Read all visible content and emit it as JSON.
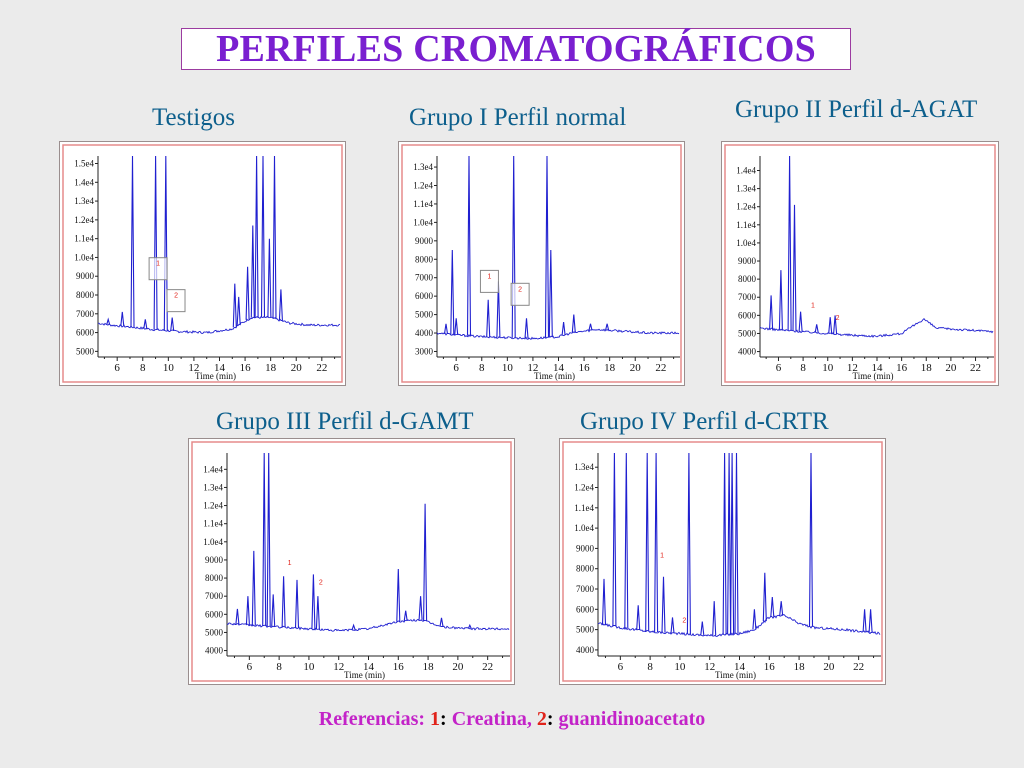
{
  "title": "PERFILES CROMATOGRÁFICOS",
  "footer": {
    "prefix": "Referencias: ",
    "n1": "1",
    "sep1": ": ",
    "name1": "Creatina, ",
    "n2": "2",
    "sep2": ": ",
    "name2": "guanidinoacetato"
  },
  "colors": {
    "trace": "#2020d0",
    "title": "#7a1fd0",
    "panel_title": "#0d5f8c",
    "marker": "#e0231a"
  },
  "chart_data": [
    {
      "type": "line",
      "title": "Testigos",
      "xlabel": "Time (min)",
      "xlim": [
        4.5,
        23.5
      ],
      "ylim": [
        4700,
        15400
      ],
      "xticks": [
        6,
        8,
        10,
        12,
        14,
        16,
        18,
        20,
        22
      ],
      "yticks": [
        5000,
        6000,
        7000,
        8000,
        9000,
        10000,
        11000,
        12000,
        13000,
        14000,
        15000
      ],
      "ytick_labels": [
        "5000",
        "6000",
        "7000",
        "8000",
        "9000",
        "1.0e4",
        "1.1e4",
        "1.2e4",
        "1.3e4",
        "1.4e4",
        "1.5e4"
      ],
      "baseline": [
        [
          4.5,
          6500
        ],
        [
          5.5,
          6400
        ],
        [
          7,
          6300
        ],
        [
          9,
          6150
        ],
        [
          11,
          6050
        ],
        [
          13,
          6000
        ],
        [
          15,
          6200
        ],
        [
          16.5,
          6800
        ],
        [
          18,
          6800
        ],
        [
          19.5,
          6500
        ],
        [
          21,
          6400
        ],
        [
          23.5,
          6400
        ]
      ],
      "peaks": [
        [
          5.3,
          6700
        ],
        [
          6.4,
          7100
        ],
        [
          7.2,
          15400
        ],
        [
          8.2,
          6700
        ],
        [
          9.0,
          15400
        ],
        [
          9.8,
          15400
        ],
        [
          10.3,
          6800
        ],
        [
          15.2,
          8600
        ],
        [
          15.5,
          7900
        ],
        [
          16.2,
          9500
        ],
        [
          16.6,
          11700
        ],
        [
          16.9,
          15400
        ],
        [
          17.4,
          15400
        ],
        [
          17.9,
          11000
        ],
        [
          18.3,
          15400
        ],
        [
          18.8,
          8300
        ]
      ],
      "markers": [
        {
          "label": "1",
          "x": 9.2,
          "y": 9400
        },
        {
          "label": "2",
          "x": 10.6,
          "y": 7700
        }
      ],
      "marker_style": "box"
    },
    {
      "type": "line",
      "title": "Grupo I Perfil normal",
      "xlabel": "Time (min)",
      "xlim": [
        4.5,
        23.5
      ],
      "ylim": [
        2700,
        13600
      ],
      "xticks": [
        6,
        8,
        10,
        12,
        14,
        16,
        18,
        20,
        22
      ],
      "yticks": [
        3000,
        4000,
        5000,
        6000,
        7000,
        8000,
        9000,
        10000,
        11000,
        12000,
        13000
      ],
      "ytick_labels": [
        "3000",
        "4000",
        "5000",
        "6000",
        "7000",
        "8000",
        "9000",
        "1.0e4",
        "1.1e4",
        "1.2e4",
        "1.3e4"
      ],
      "baseline": [
        [
          4.5,
          4000
        ],
        [
          6,
          3900
        ],
        [
          8,
          3800
        ],
        [
          10,
          3750
        ],
        [
          12,
          3700
        ],
        [
          14,
          3800
        ],
        [
          15,
          4000
        ],
        [
          17,
          4200
        ],
        [
          19,
          4100
        ],
        [
          21,
          4000
        ],
        [
          23.5,
          4000
        ]
      ],
      "peaks": [
        [
          5.2,
          4500
        ],
        [
          5.7,
          8500
        ],
        [
          6.0,
          4800
        ],
        [
          7.0,
          13600
        ],
        [
          8.5,
          5800
        ],
        [
          9.3,
          6800
        ],
        [
          10.5,
          13600
        ],
        [
          11.5,
          4800
        ],
        [
          13.1,
          13600
        ],
        [
          13.4,
          8500
        ],
        [
          14.4,
          4600
        ],
        [
          15.2,
          5000
        ],
        [
          16.5,
          4500
        ],
        [
          17.8,
          4500
        ]
      ],
      "markers": [
        {
          "label": "1",
          "x": 8.6,
          "y": 6800
        },
        {
          "label": "2",
          "x": 11.0,
          "y": 6100
        }
      ],
      "marker_style": "box"
    },
    {
      "type": "line",
      "title": "Grupo II Perfil d-AGAT",
      "xlabel": "Time (min)",
      "xlim": [
        4.5,
        23.5
      ],
      "ylim": [
        3700,
        14800
      ],
      "xticks": [
        6,
        8,
        10,
        12,
        14,
        16,
        18,
        20,
        22
      ],
      "yticks": [
        4000,
        5000,
        6000,
        7000,
        8000,
        9000,
        10000,
        11000,
        12000,
        13000,
        14000
      ],
      "ytick_labels": [
        "4000",
        "5000",
        "6000",
        "7000",
        "8000",
        "9000",
        "1.0e4",
        "1.1e4",
        "1.2e4",
        "1.3e4",
        "1.4e4"
      ],
      "baseline": [
        [
          4.5,
          5300
        ],
        [
          6,
          5200
        ],
        [
          8,
          5100
        ],
        [
          10,
          5000
        ],
        [
          12,
          4900
        ],
        [
          14,
          4850
        ],
        [
          16,
          5000
        ],
        [
          17.8,
          5800
        ],
        [
          18.8,
          5300
        ],
        [
          21,
          5200
        ],
        [
          23.5,
          5100
        ]
      ],
      "peaks": [
        [
          5.4,
          7100
        ],
        [
          6.2,
          8500
        ],
        [
          6.9,
          14800
        ],
        [
          7.3,
          12100
        ],
        [
          7.8,
          6200
        ],
        [
          9.1,
          5500
        ],
        [
          10.2,
          5900
        ],
        [
          10.6,
          6000
        ]
      ],
      "markers": [
        {
          "label": "1",
          "x": 8.8,
          "y": 6600
        },
        {
          "label": "2",
          "x": 10.8,
          "y": 5900
        }
      ],
      "marker_style": "text"
    },
    {
      "type": "line",
      "title": "Grupo III Perfil d-GAMT",
      "xlabel": "Time (min)",
      "xlim": [
        4.5,
        23.5
      ],
      "ylim": [
        3700,
        14900
      ],
      "xticks": [
        6,
        8,
        10,
        12,
        14,
        16,
        18,
        20,
        22
      ],
      "yticks": [
        4000,
        5000,
        6000,
        7000,
        8000,
        9000,
        10000,
        11000,
        12000,
        13000,
        14000
      ],
      "ytick_labels": [
        "4000",
        "5000",
        "6000",
        "7000",
        "8000",
        "9000",
        "1.0e4",
        "1.1e4",
        "1.2e4",
        "1.3e4",
        "1.4e4"
      ],
      "baseline": [
        [
          4.5,
          5500
        ],
        [
          6,
          5400
        ],
        [
          8,
          5300
        ],
        [
          10,
          5200
        ],
        [
          12,
          5100
        ],
        [
          14,
          5200
        ],
        [
          16,
          5600
        ],
        [
          17.5,
          5700
        ],
        [
          19,
          5300
        ],
        [
          21,
          5200
        ],
        [
          23.5,
          5200
        ]
      ],
      "peaks": [
        [
          5.2,
          6300
        ],
        [
          5.9,
          7000
        ],
        [
          6.3,
          9500
        ],
        [
          7.0,
          14900
        ],
        [
          7.3,
          14900
        ],
        [
          7.6,
          7100
        ],
        [
          8.3,
          8100
        ],
        [
          9.2,
          7900
        ],
        [
          10.3,
          8200
        ],
        [
          10.6,
          7000
        ],
        [
          13.0,
          5400
        ],
        [
          16.0,
          8500
        ],
        [
          16.5,
          6200
        ],
        [
          17.5,
          7000
        ],
        [
          17.8,
          12100
        ],
        [
          18.9,
          5800
        ],
        [
          20.8,
          5400
        ]
      ],
      "markers": [
        {
          "label": "1",
          "x": 8.7,
          "y": 8900
        },
        {
          "label": "2",
          "x": 10.8,
          "y": 7800
        }
      ],
      "marker_style": "text"
    },
    {
      "type": "line",
      "title": "Grupo IV Perfil d-CRTR",
      "xlabel": "Time (min)",
      "xlim": [
        4.5,
        23.5
      ],
      "ylim": [
        3700,
        13700
      ],
      "xticks": [
        6,
        8,
        10,
        12,
        14,
        16,
        18,
        20,
        22
      ],
      "yticks": [
        4000,
        5000,
        6000,
        7000,
        8000,
        9000,
        10000,
        11000,
        12000,
        13000
      ],
      "ytick_labels": [
        "4000",
        "5000",
        "6000",
        "7000",
        "8000",
        "9000",
        "1.0e4",
        "1.1e4",
        "1.2e4",
        "1.3e4"
      ],
      "baseline": [
        [
          4.5,
          5300
        ],
        [
          6,
          5100
        ],
        [
          8,
          4900
        ],
        [
          10,
          4800
        ],
        [
          12,
          4700
        ],
        [
          14,
          4800
        ],
        [
          15,
          5000
        ],
        [
          16,
          5600
        ],
        [
          17,
          5700
        ],
        [
          18,
          5300
        ],
        [
          19,
          5100
        ],
        [
          21,
          5000
        ],
        [
          23.5,
          4800
        ]
      ],
      "peaks": [
        [
          4.9,
          7500
        ],
        [
          5.6,
          13700
        ],
        [
          6.4,
          13700
        ],
        [
          7.2,
          6200
        ],
        [
          7.8,
          13700
        ],
        [
          8.4,
          13700
        ],
        [
          8.9,
          7600
        ],
        [
          9.5,
          5600
        ],
        [
          10.6,
          13700
        ],
        [
          11.5,
          5400
        ],
        [
          12.3,
          6400
        ],
        [
          13.0,
          13700
        ],
        [
          13.3,
          13700
        ],
        [
          13.5,
          13700
        ],
        [
          13.8,
          13700
        ],
        [
          15.0,
          6000
        ],
        [
          15.7,
          7800
        ],
        [
          16.2,
          6600
        ],
        [
          16.8,
          6400
        ],
        [
          18.8,
          13700
        ],
        [
          22.4,
          6000
        ],
        [
          22.8,
          6000
        ]
      ],
      "markers": [
        {
          "label": "1",
          "x": 8.8,
          "y": 8700
        },
        {
          "label": "2",
          "x": 10.3,
          "y": 5500
        }
      ],
      "marker_style": "text"
    }
  ]
}
